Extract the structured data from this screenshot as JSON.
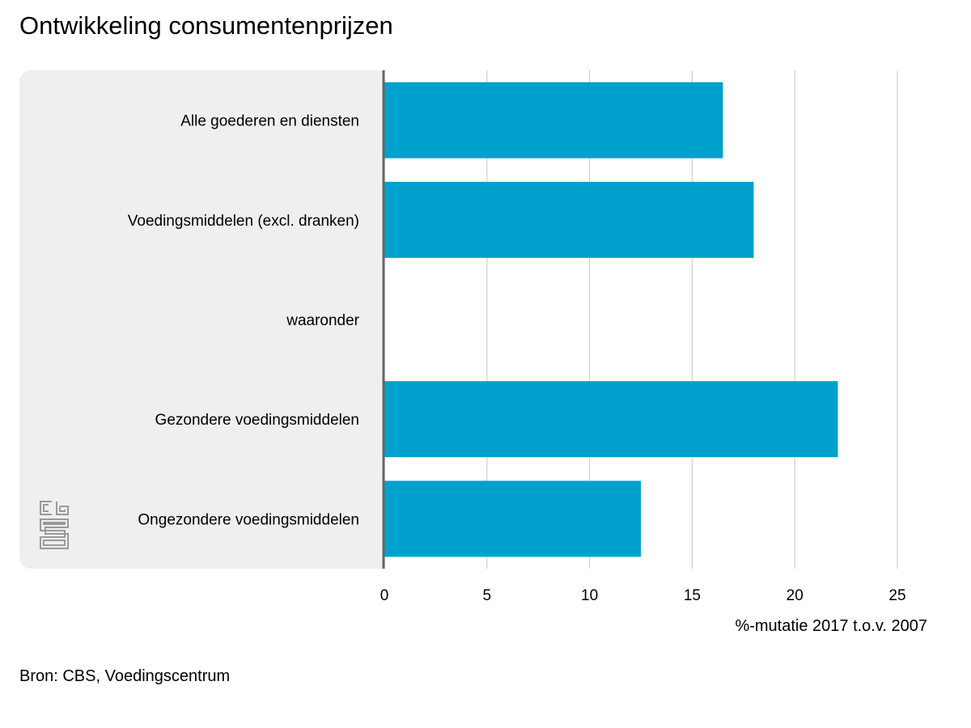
{
  "title": "Ontwikkeling consumentenprijzen",
  "source": "Bron: CBS, Voedingscentrum",
  "logo": {
    "icon": "cbs-logo-icon",
    "color": "#9a9a9a"
  },
  "colors": {
    "bar": "#00a1cd",
    "grid": "#c8c8c8",
    "axis": "#666666",
    "panel": "#efefef"
  },
  "chart_data": {
    "type": "bar",
    "orientation": "horizontal",
    "title": "Ontwikkeling consumentenprijzen",
    "xlabel": "%-mutatie 2017 t.o.v. 2007",
    "ylabel": "",
    "categories": [
      "Alle goederen en diensten",
      "Voedingsmiddelen (excl. dranken)",
      "waaronder",
      "Gezondere voedingsmiddelen",
      "Ongezondere voedingsmiddelen"
    ],
    "values": [
      16.5,
      18.0,
      null,
      22.1,
      12.5
    ],
    "xlim": [
      0,
      25
    ],
    "ticks": [
      0,
      5,
      10,
      15,
      20,
      25
    ],
    "tick_labels": [
      "0",
      "5",
      "10",
      "15",
      "20",
      "25"
    ],
    "grid": true,
    "legend": "none"
  }
}
